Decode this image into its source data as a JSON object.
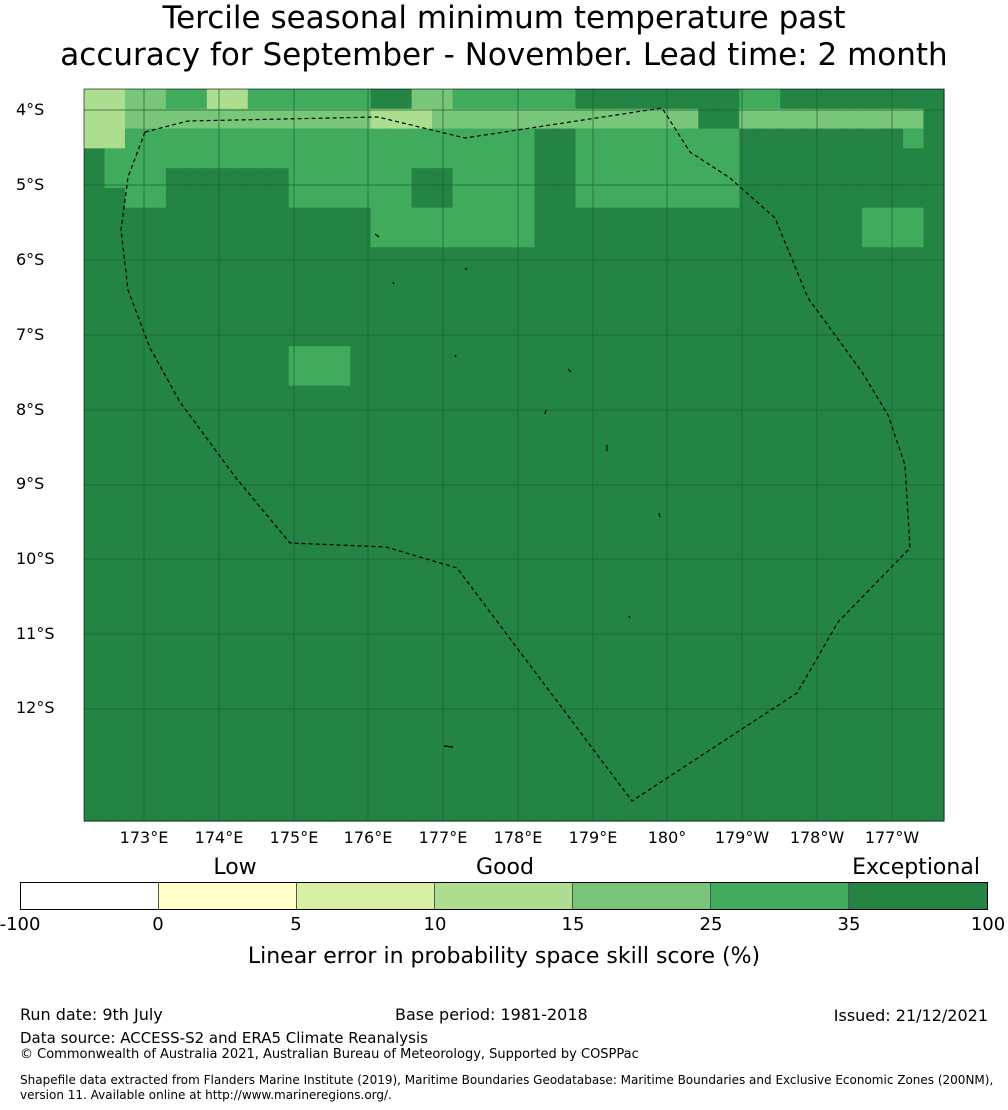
{
  "title_line1": "Tercile seasonal minimum temperature past",
  "title_line2": "accuracy for September - November. Lead time: 2 month",
  "map": {
    "lat_labels": [
      "4°S",
      "5°S",
      "6°S",
      "7°S",
      "8°S",
      "9°S",
      "10°S",
      "11°S",
      "12°S"
    ],
    "lon_labels": [
      "173°E",
      "174°E",
      "175°E",
      "176°E",
      "177°E",
      "178°E",
      "179°E",
      "180°",
      "179°W",
      "178°W",
      "177°W"
    ],
    "grid": [
      [
        3,
        3,
        4,
        4,
        5,
        5,
        3,
        3,
        5,
        5,
        5,
        5,
        5,
        5,
        6,
        6,
        4,
        4,
        5,
        5,
        5,
        5,
        5,
        5,
        6,
        6,
        6,
        6,
        6,
        6,
        6,
        6,
        5,
        5,
        6,
        6,
        6,
        6,
        6,
        6,
        6,
        6
      ],
      [
        3,
        3,
        4,
        4,
        4,
        4,
        4,
        4,
        4,
        4,
        4,
        4,
        4,
        4,
        3,
        3,
        3,
        4,
        4,
        4,
        4,
        4,
        4,
        4,
        4,
        4,
        4,
        4,
        4,
        4,
        6,
        6,
        4,
        4,
        4,
        4,
        4,
        4,
        4,
        4,
        4,
        6
      ],
      [
        3,
        3,
        5,
        5,
        5,
        5,
        5,
        5,
        5,
        5,
        5,
        5,
        5,
        5,
        5,
        5,
        5,
        5,
        5,
        5,
        5,
        5,
        6,
        6,
        5,
        5,
        5,
        5,
        5,
        5,
        5,
        5,
        6,
        6,
        6,
        6,
        6,
        6,
        6,
        6,
        5,
        6
      ],
      [
        6,
        5,
        5,
        5,
        5,
        5,
        5,
        5,
        5,
        5,
        5,
        5,
        5,
        5,
        5,
        5,
        5,
        5,
        5,
        5,
        5,
        5,
        6,
        6,
        5,
        5,
        5,
        5,
        5,
        5,
        5,
        5,
        6,
        6,
        6,
        6,
        6,
        6,
        6,
        6,
        6,
        6
      ],
      [
        6,
        5,
        5,
        5,
        6,
        6,
        6,
        6,
        6,
        6,
        5,
        5,
        5,
        5,
        5,
        5,
        6,
        6,
        5,
        5,
        5,
        5,
        6,
        6,
        5,
        5,
        5,
        5,
        5,
        5,
        5,
        5,
        6,
        6,
        6,
        6,
        6,
        6,
        6,
        6,
        6,
        6
      ],
      [
        6,
        6,
        5,
        5,
        6,
        6,
        6,
        6,
        6,
        6,
        5,
        5,
        5,
        5,
        5,
        5,
        6,
        6,
        5,
        5,
        5,
        5,
        6,
        6,
        5,
        5,
        5,
        5,
        5,
        5,
        5,
        5,
        6,
        6,
        6,
        6,
        6,
        6,
        6,
        6,
        6,
        6
      ],
      [
        6,
        6,
        6,
        6,
        6,
        6,
        6,
        6,
        6,
        6,
        6,
        6,
        6,
        6,
        5,
        5,
        5,
        5,
        5,
        5,
        5,
        5,
        6,
        6,
        6,
        6,
        6,
        6,
        6,
        6,
        6,
        6,
        6,
        6,
        6,
        6,
        6,
        6,
        5,
        5,
        5,
        6
      ],
      [
        6,
        6,
        6,
        6,
        6,
        6,
        6,
        6,
        6,
        6,
        6,
        6,
        6,
        6,
        5,
        5,
        5,
        5,
        5,
        5,
        5,
        5,
        6,
        6,
        6,
        6,
        6,
        6,
        6,
        6,
        6,
        6,
        6,
        6,
        6,
        6,
        6,
        6,
        5,
        5,
        5,
        6
      ],
      [
        6,
        6,
        6,
        6,
        6,
        6,
        6,
        6,
        6,
        6,
        6,
        6,
        6,
        6,
        6,
        6,
        6,
        6,
        6,
        6,
        6,
        6,
        6,
        6,
        6,
        6,
        6,
        6,
        6,
        6,
        6,
        6,
        6,
        6,
        6,
        6,
        6,
        6,
        6,
        6,
        6,
        6
      ],
      [
        6,
        6,
        6,
        6,
        6,
        6,
        6,
        6,
        6,
        6,
        6,
        6,
        6,
        6,
        6,
        6,
        6,
        6,
        6,
        6,
        6,
        6,
        6,
        6,
        6,
        6,
        6,
        6,
        6,
        6,
        6,
        6,
        6,
        6,
        6,
        6,
        6,
        6,
        6,
        6,
        6,
        6
      ],
      [
        6,
        6,
        6,
        6,
        6,
        6,
        6,
        6,
        6,
        6,
        6,
        6,
        6,
        6,
        6,
        6,
        6,
        6,
        6,
        6,
        6,
        6,
        6,
        6,
        6,
        6,
        6,
        6,
        6,
        6,
        6,
        6,
        6,
        6,
        6,
        6,
        6,
        6,
        6,
        6,
        6,
        6
      ],
      [
        6,
        6,
        6,
        6,
        6,
        6,
        6,
        6,
        6,
        6,
        6,
        6,
        6,
        6,
        6,
        6,
        6,
        6,
        6,
        6,
        6,
        6,
        6,
        6,
        6,
        6,
        6,
        6,
        6,
        6,
        6,
        6,
        6,
        6,
        6,
        6,
        6,
        6,
        6,
        6,
        6,
        6
      ],
      [
        6,
        6,
        6,
        6,
        6,
        6,
        6,
        6,
        6,
        6,
        6,
        6,
        6,
        6,
        6,
        6,
        6,
        6,
        6,
        6,
        6,
        6,
        6,
        6,
        6,
        6,
        6,
        6,
        6,
        6,
        6,
        6,
        6,
        6,
        6,
        6,
        6,
        6,
        6,
        6,
        6,
        6
      ],
      [
        6,
        6,
        6,
        6,
        6,
        6,
        6,
        6,
        6,
        6,
        5,
        5,
        5,
        6,
        6,
        6,
        6,
        6,
        6,
        6,
        6,
        6,
        6,
        6,
        6,
        6,
        6,
        6,
        6,
        6,
        6,
        6,
        6,
        6,
        6,
        6,
        6,
        6,
        6,
        6,
        6,
        6
      ],
      [
        6,
        6,
        6,
        6,
        6,
        6,
        6,
        6,
        6,
        6,
        5,
        5,
        5,
        6,
        6,
        6,
        6,
        6,
        6,
        6,
        6,
        6,
        6,
        6,
        6,
        6,
        6,
        6,
        6,
        6,
        6,
        6,
        6,
        6,
        6,
        6,
        6,
        6,
        6,
        6,
        6,
        6
      ],
      [
        6,
        6,
        6,
        6,
        6,
        6,
        6,
        6,
        6,
        6,
        6,
        6,
        6,
        6,
        6,
        6,
        6,
        6,
        6,
        6,
        6,
        6,
        6,
        6,
        6,
        6,
        6,
        6,
        6,
        6,
        6,
        6,
        6,
        6,
        6,
        6,
        6,
        6,
        6,
        6,
        6,
        6
      ],
      [
        6,
        6,
        6,
        6,
        6,
        6,
        6,
        6,
        6,
        6,
        6,
        6,
        6,
        6,
        6,
        6,
        6,
        6,
        6,
        6,
        6,
        6,
        6,
        6,
        6,
        6,
        6,
        6,
        6,
        6,
        6,
        6,
        6,
        6,
        6,
        6,
        6,
        6,
        6,
        6,
        6,
        6
      ],
      [
        6,
        6,
        6,
        6,
        6,
        6,
        6,
        6,
        6,
        6,
        6,
        6,
        6,
        6,
        6,
        6,
        6,
        6,
        6,
        6,
        6,
        6,
        6,
        6,
        6,
        6,
        6,
        6,
        6,
        6,
        6,
        6,
        6,
        6,
        6,
        6,
        6,
        6,
        6,
        6,
        6,
        6
      ],
      [
        6,
        6,
        6,
        6,
        6,
        6,
        6,
        6,
        6,
        6,
        6,
        6,
        6,
        6,
        6,
        6,
        6,
        6,
        6,
        6,
        6,
        6,
        6,
        6,
        6,
        6,
        6,
        6,
        6,
        6,
        6,
        6,
        6,
        6,
        6,
        6,
        6,
        6,
        6,
        6,
        6,
        6
      ],
      [
        6,
        6,
        6,
        6,
        6,
        6,
        6,
        6,
        6,
        6,
        6,
        6,
        6,
        6,
        6,
        6,
        6,
        6,
        6,
        6,
        6,
        6,
        6,
        6,
        6,
        6,
        6,
        6,
        6,
        6,
        6,
        6,
        6,
        6,
        6,
        6,
        6,
        6,
        6,
        6,
        6,
        6
      ],
      [
        6,
        6,
        6,
        6,
        6,
        6,
        6,
        6,
        6,
        6,
        6,
        6,
        6,
        6,
        6,
        6,
        6,
        6,
        6,
        6,
        6,
        6,
        6,
        6,
        6,
        6,
        6,
        6,
        6,
        6,
        6,
        6,
        6,
        6,
        6,
        6,
        6,
        6,
        6,
        6,
        6,
        6
      ],
      [
        6,
        6,
        6,
        6,
        6,
        6,
        6,
        6,
        6,
        6,
        6,
        6,
        6,
        6,
        6,
        6,
        6,
        6,
        6,
        6,
        6,
        6,
        6,
        6,
        6,
        6,
        6,
        6,
        6,
        6,
        6,
        6,
        6,
        6,
        6,
        6,
        6,
        6,
        6,
        6,
        6,
        6
      ],
      [
        6,
        6,
        6,
        6,
        6,
        6,
        6,
        6,
        6,
        6,
        6,
        6,
        6,
        6,
        6,
        6,
        6,
        6,
        6,
        6,
        6,
        6,
        6,
        6,
        6,
        6,
        6,
        6,
        6,
        6,
        6,
        6,
        6,
        6,
        6,
        6,
        6,
        6,
        6,
        6,
        6,
        6
      ],
      [
        6,
        6,
        6,
        6,
        6,
        6,
        6,
        6,
        6,
        6,
        6,
        6,
        6,
        6,
        6,
        6,
        6,
        6,
        6,
        6,
        6,
        6,
        6,
        6,
        6,
        6,
        6,
        6,
        6,
        6,
        6,
        6,
        6,
        6,
        6,
        6,
        6,
        6,
        6,
        6,
        6,
        6
      ],
      [
        6,
        6,
        6,
        6,
        6,
        6,
        6,
        6,
        6,
        6,
        6,
        6,
        6,
        6,
        6,
        6,
        6,
        6,
        6,
        6,
        6,
        6,
        6,
        6,
        6,
        6,
        6,
        6,
        6,
        6,
        6,
        6,
        6,
        6,
        6,
        6,
        6,
        6,
        6,
        6,
        6,
        6
      ],
      [
        6,
        6,
        6,
        6,
        6,
        6,
        6,
        6,
        6,
        6,
        6,
        6,
        6,
        6,
        6,
        6,
        6,
        6,
        6,
        6,
        6,
        6,
        6,
        6,
        6,
        6,
        6,
        6,
        6,
        6,
        6,
        6,
        6,
        6,
        6,
        6,
        6,
        6,
        6,
        6,
        6,
        6
      ],
      [
        6,
        6,
        6,
        6,
        6,
        6,
        6,
        6,
        6,
        6,
        6,
        6,
        6,
        6,
        6,
        6,
        6,
        6,
        6,
        6,
        6,
        6,
        6,
        6,
        6,
        6,
        6,
        6,
        6,
        6,
        6,
        6,
        6,
        6,
        6,
        6,
        6,
        6,
        6,
        6,
        6,
        6
      ],
      [
        6,
        6,
        6,
        6,
        6,
        6,
        6,
        6,
        6,
        6,
        6,
        6,
        6,
        6,
        6,
        6,
        6,
        6,
        6,
        6,
        6,
        6,
        6,
        6,
        6,
        6,
        6,
        6,
        6,
        6,
        6,
        6,
        6,
        6,
        6,
        6,
        6,
        6,
        6,
        6,
        6,
        6
      ],
      [
        6,
        6,
        6,
        6,
        6,
        6,
        6,
        6,
        6,
        6,
        6,
        6,
        6,
        6,
        6,
        6,
        6,
        6,
        6,
        6,
        6,
        6,
        6,
        6,
        6,
        6,
        6,
        6,
        6,
        6,
        6,
        6,
        6,
        6,
        6,
        6,
        6,
        6,
        6,
        6,
        6,
        6
      ],
      [
        6,
        6,
        6,
        6,
        6,
        6,
        6,
        6,
        6,
        6,
        6,
        6,
        6,
        6,
        6,
        6,
        6,
        6,
        6,
        6,
        6,
        6,
        6,
        6,
        6,
        6,
        6,
        6,
        6,
        6,
        6,
        6,
        6,
        6,
        6,
        6,
        6,
        6,
        6,
        6,
        6,
        6
      ],
      [
        6,
        6,
        6,
        6,
        6,
        6,
        6,
        6,
        6,
        6,
        6,
        6,
        6,
        6,
        6,
        6,
        6,
        6,
        6,
        6,
        6,
        6,
        6,
        6,
        6,
        6,
        6,
        6,
        6,
        6,
        6,
        6,
        6,
        6,
        6,
        6,
        6,
        6,
        6,
        6,
        6,
        6
      ],
      [
        6,
        6,
        6,
        6,
        6,
        6,
        6,
        6,
        6,
        6,
        6,
        6,
        6,
        6,
        6,
        6,
        6,
        6,
        6,
        6,
        6,
        6,
        6,
        6,
        6,
        6,
        6,
        6,
        6,
        6,
        6,
        6,
        6,
        6,
        6,
        6,
        6,
        6,
        6,
        6,
        6,
        6
      ],
      [
        6,
        6,
        6,
        6,
        6,
        6,
        6,
        6,
        6,
        6,
        6,
        6,
        6,
        6,
        6,
        6,
        6,
        6,
        6,
        6,
        6,
        6,
        6,
        6,
        6,
        6,
        6,
        6,
        6,
        6,
        6,
        6,
        6,
        6,
        6,
        6,
        6,
        6,
        6,
        6,
        6,
        6
      ],
      [
        6,
        6,
        6,
        6,
        6,
        6,
        6,
        6,
        6,
        6,
        6,
        6,
        6,
        6,
        6,
        6,
        6,
        6,
        6,
        6,
        6,
        6,
        6,
        6,
        6,
        6,
        6,
        6,
        6,
        6,
        6,
        6,
        6,
        6,
        6,
        6,
        6,
        6,
        6,
        6,
        6,
        6
      ],
      [
        6,
        6,
        6,
        6,
        6,
        6,
        6,
        6,
        6,
        6,
        6,
        6,
        6,
        6,
        6,
        6,
        6,
        6,
        6,
        6,
        6,
        6,
        6,
        6,
        6,
        6,
        6,
        6,
        6,
        6,
        6,
        6,
        6,
        6,
        6,
        6,
        6,
        6,
        6,
        6,
        6,
        6
      ],
      [
        6,
        6,
        6,
        6,
        6,
        6,
        6,
        6,
        6,
        6,
        6,
        6,
        6,
        6,
        6,
        6,
        6,
        6,
        6,
        6,
        6,
        6,
        6,
        6,
        6,
        6,
        6,
        6,
        6,
        6,
        6,
        6,
        6,
        6,
        6,
        6,
        6,
        6,
        6,
        6,
        6,
        6
      ],
      [
        6,
        6,
        6,
        6,
        6,
        6,
        6,
        6,
        6,
        6,
        6,
        6,
        6,
        6,
        6,
        6,
        6,
        6,
        6,
        6,
        6,
        6,
        6,
        6,
        6,
        6,
        6,
        6,
        6,
        6,
        6,
        6,
        6,
        6,
        6,
        6,
        6,
        6,
        6,
        6,
        6,
        6
      ]
    ]
  },
  "colorbar": {
    "categories": [
      "Low",
      "Good",
      "Exceptional"
    ],
    "colors": [
      "#ffffff",
      "#ffffcc",
      "#d9f0a3",
      "#addd8e",
      "#78c679",
      "#41ab5d",
      "#238443"
    ],
    "ticks": [
      "-100",
      "0",
      "5",
      "10",
      "15",
      "25",
      "35",
      "100"
    ],
    "label": "Linear error in probability space skill score (%)"
  },
  "footer": {
    "run_date": "Run date: 9th July",
    "base_period": "Base period: 1981-2018",
    "issued": "Issued: 21/12/2021",
    "data_source": "Data source: ACCESS-S2 and ERA5 Climate Reanalysis",
    "copyright": "© Commonwealth of Australia 2021, Australian Bureau of Meteorology, Supported by COSPPac",
    "shapefile_line1": "Shapefile data extracted from Flanders Marine Institute (2019), Maritime Boundaries Geodatabase: Maritime Boundaries and Exclusive Economic Zones (200NM),",
    "shapefile_line2": "version 11. Available online at http://www.marineregions.org/."
  }
}
